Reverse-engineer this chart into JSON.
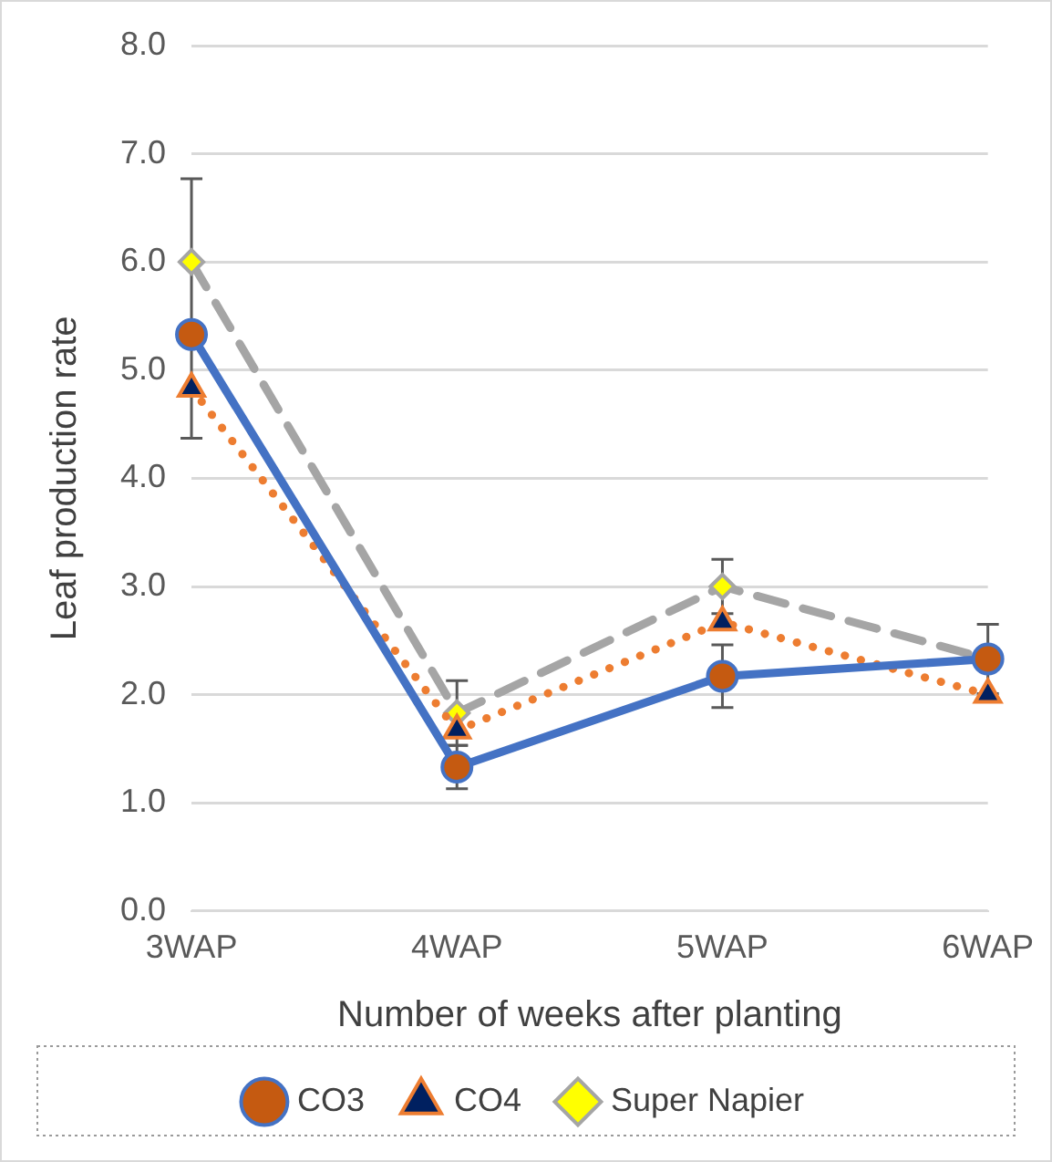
{
  "chart_data": {
    "type": "line",
    "xlabel": "Number of weeks after planting",
    "ylabel": "Leaf production rate",
    "categories": [
      "3WAP",
      "4WAP",
      "5WAP",
      "6WAP"
    ],
    "series": [
      {
        "name": "CO3",
        "color": "#4472c4",
        "marker": "circle",
        "line_style": "solid",
        "values": [
          5.33,
          1.33,
          2.17,
          2.33
        ],
        "errors": [
          null,
          0.2,
          0.29,
          null
        ]
      },
      {
        "name": "CO4",
        "color": "#ed7d31",
        "marker": "triangle",
        "line_style": "dotted",
        "values": [
          4.83,
          1.67,
          2.67,
          2.0
        ],
        "errors": [
          0.46,
          null,
          null,
          null
        ]
      },
      {
        "name": "Super Napier",
        "color": "#a5a5a5",
        "marker": "diamond",
        "line_style": "dashed",
        "values": [
          6.0,
          1.83,
          3.0,
          2.33
        ],
        "errors": [
          0.77,
          0.3,
          0.25,
          0.32
        ]
      }
    ],
    "ylim": [
      0,
      8
    ],
    "yticks": [
      {
        "value": 0,
        "label": "0.0"
      },
      {
        "value": 1,
        "label": "1.0"
      },
      {
        "value": 2,
        "label": "2.0"
      },
      {
        "value": 3,
        "label": "3.0"
      },
      {
        "value": 4,
        "label": "4.0"
      },
      {
        "value": 5,
        "label": "5.0"
      },
      {
        "value": 6,
        "label": "6.0"
      },
      {
        "value": 7,
        "label": "7.0"
      },
      {
        "value": 8,
        "label": "8.0"
      }
    ],
    "grid": "y",
    "legend": "bottom"
  }
}
